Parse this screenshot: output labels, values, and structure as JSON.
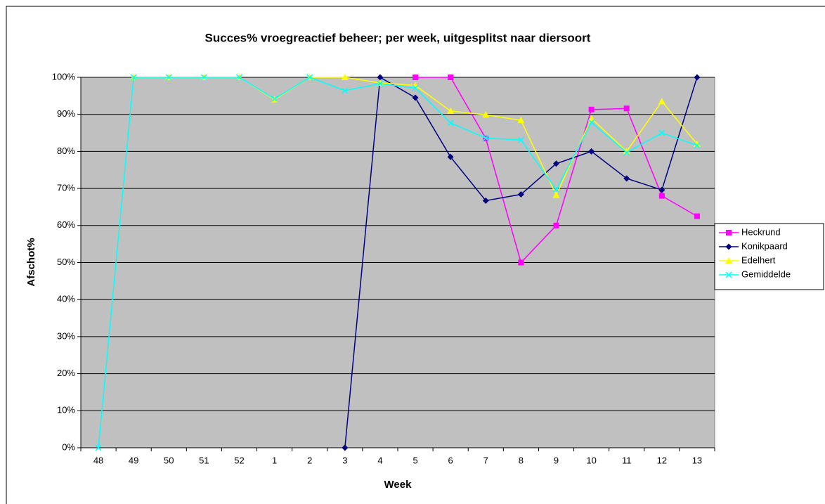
{
  "chart_data": {
    "type": "line",
    "title": "Succes% vroegreactief beheer; per week, uitgesplitst naar diersoort",
    "x_label": "Week",
    "y_label": "Afschot%",
    "categories": [
      "48",
      "49",
      "50",
      "51",
      "52",
      "1",
      "2",
      "3",
      "4",
      "5",
      "6",
      "7",
      "8",
      "9",
      "10",
      "11",
      "12",
      "13"
    ],
    "series": [
      {
        "name": "Heckrund",
        "color": "#ff00ff",
        "marker": "square",
        "values": [
          null,
          null,
          null,
          null,
          null,
          null,
          null,
          null,
          null,
          100,
          100,
          83.5,
          50,
          60,
          91.3,
          91.6,
          68,
          62.5
        ]
      },
      {
        "name": "Konikpaard",
        "color": "#000080",
        "marker": "diamond",
        "values": [
          null,
          null,
          null,
          null,
          null,
          null,
          null,
          0,
          100,
          94.5,
          78.5,
          66.7,
          68.4,
          76.7,
          80,
          72.7,
          69.6,
          100
        ]
      },
      {
        "name": "Edelhert",
        "color": "#ffff00",
        "marker": "triangle",
        "values": [
          null,
          100,
          100,
          100,
          100,
          94,
          100,
          100,
          98.5,
          97.8,
          90.9,
          89.9,
          88.4,
          68.2,
          88.9,
          80,
          93.5,
          82
        ]
      },
      {
        "name": "Gemiddelde",
        "color": "#00ffff",
        "marker": "x",
        "values": [
          0,
          100,
          100,
          100,
          100,
          94.2,
          100,
          96.4,
          98.3,
          97.1,
          87.7,
          83.6,
          83.1,
          69.7,
          87.8,
          79.7,
          85,
          81.6
        ]
      }
    ],
    "ylim": [
      0,
      100
    ],
    "yticks": [
      {
        "value": 0,
        "label": "0%"
      },
      {
        "value": 10,
        "label": "10%"
      },
      {
        "value": 20,
        "label": "20%"
      },
      {
        "value": 30,
        "label": "30%"
      },
      {
        "value": 40,
        "label": "40%"
      },
      {
        "value": 50,
        "label": "50%"
      },
      {
        "value": 60,
        "label": "60%"
      },
      {
        "value": 70,
        "label": "70%"
      },
      {
        "value": 80,
        "label": "80%"
      },
      {
        "value": 90,
        "label": "90%"
      },
      {
        "value": 100,
        "label": "100%"
      }
    ],
    "grid": true,
    "plot_background": "#c0c0c0",
    "legend": "right"
  }
}
